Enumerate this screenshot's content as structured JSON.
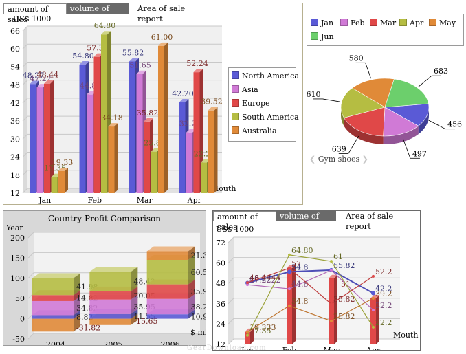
{
  "colors": {
    "north_america": "#5a5ad6",
    "asia": "#d07ad6",
    "europe": "#e04848",
    "south_america": "#b5bd42",
    "australia": "#e08a38",
    "jan": "#5a5ad6",
    "feb": "#d07ad6",
    "mar": "#e04848",
    "apr": "#b5bd42",
    "may": "#e08a38",
    "jun": "#6ccf6c"
  },
  "panel1": {
    "tabs": [
      "amount of sales",
      "volume of sales",
      "Area of sale report"
    ],
    "unit_label": "US$ 1000",
    "x_label": "Mouth",
    "legend": [
      "North America",
      "Asia",
      "Europe",
      "South America",
      "Australia"
    ]
  },
  "panel2": {
    "legend": [
      "Jan",
      "Feb",
      "Mar",
      "Apr",
      "May",
      "Jun"
    ],
    "caption": "Gym shoes"
  },
  "panel3": {
    "title": "Country Profit Comparison",
    "y_label": "Year",
    "unit_label": "$ mil"
  },
  "panel4": {
    "tabs": [
      "amount of sales",
      "volume of sales",
      "Area of sale report"
    ],
    "unit_label": "US$ 1000",
    "x_label": "Mouth"
  },
  "watermark": "GearDownload.com",
  "chart_data": [
    {
      "type": "bar",
      "categories": [
        "Jan",
        "Feb",
        "Mar",
        "Apr"
      ],
      "series": [
        {
          "name": "North America",
          "values": [
            48.27,
            54.8,
            55.82,
            42.2
          ]
        },
        {
          "name": "Asia",
          "values": [
            47.22,
            44.8,
            51.65,
            32.2
          ]
        },
        {
          "name": "Europe",
          "values": [
            48.44,
            57.38,
            35.82,
            52.24
          ]
        },
        {
          "name": "South America",
          "values": [
            17.35,
            64.8,
            25.82,
            22.21
          ]
        },
        {
          "name": "Australia",
          "values": [
            19.33,
            34.18,
            61.0,
            39.52
          ]
        }
      ],
      "labels": [
        [
          "48.27",
          "54.80",
          "55.82",
          "42.20"
        ],
        [
          "47.22",
          "44.80",
          "51.65",
          "32.20"
        ],
        [
          "48.44",
          "57.38",
          "35.82",
          "52.24"
        ],
        [
          "17.35",
          "64.80",
          "25.82",
          "22.21"
        ],
        [
          "19.33",
          "34.18",
          "61.00",
          "39.52"
        ]
      ],
      "yticks": [
        12,
        18,
        24,
        30,
        36,
        42,
        48,
        54,
        60,
        66
      ],
      "ylim": [
        12,
        66
      ]
    },
    {
      "type": "pie",
      "categories": [
        "Jan",
        "Feb",
        "Mar",
        "Apr",
        "May",
        "Jun"
      ],
      "values": [
        456,
        497,
        639,
        610,
        580,
        683
      ]
    },
    {
      "type": "bar",
      "title": "Country Profit Comparison",
      "categories": [
        "2004",
        "2005",
        "2006"
      ],
      "stacks": [
        [
          8.82,
          34.82,
          14.82,
          41.98
        ],
        [
          11.55,
          35.95,
          20.05,
          48.42
        ],
        [
          10.91,
          38.22,
          35.92,
          60.52,
          21.37
        ]
      ],
      "negatives": [
        -31.82,
        -15.65,
        0
      ],
      "negative_labels": [
        "-31.82",
        "-15.65",
        ""
      ],
      "stack_labels": [
        [
          "8.82",
          "34.82",
          "14.82",
          "41.98"
        ],
        [
          "11.55",
          "35.95",
          "20.05",
          "48.42"
        ],
        [
          "10.91",
          "38.22",
          "35.92",
          "60.52",
          "21.37"
        ]
      ],
      "yticks": [
        -50,
        0,
        50,
        100,
        150,
        200
      ],
      "ylim": [
        -50,
        200
      ]
    },
    {
      "type": "line",
      "categories": [
        "Jan",
        "Feb",
        "Mar",
        "Apr"
      ],
      "series": [
        {
          "name": "North America",
          "values": [
            48.27,
            54.8,
            55.82,
            42.2
          ]
        },
        {
          "name": "Asia",
          "values": [
            47.2222,
            44.8,
            55.82,
            32.2
          ]
        },
        {
          "name": "Europe",
          "values": [
            48.4444,
            57,
            35.82,
            52.2
          ]
        },
        {
          "name": "South America",
          "values": [
            17.35,
            64.8,
            61,
            22.2
          ]
        },
        {
          "name": "Australia",
          "values": [
            19.333,
            34.8,
            25.82,
            39.2
          ]
        }
      ],
      "bars": [
        19.333,
        57,
        51,
        39.2
      ],
      "labels": [
        [
          "48.27",
          "54.8",
          "55.82",
          "42.2"
        ],
        [
          "47.2222",
          "44.8",
          "",
          "32.2"
        ],
        [
          "48.4444",
          "57",
          "35.82",
          "52.2"
        ],
        [
          "17.35",
          "64.80",
          "61",
          "22.2"
        ],
        [
          "19.333",
          "34.8",
          "25.82",
          "39.2"
        ]
      ],
      "bar_labels": [
        "",
        "",
        "51",
        ""
      ],
      "yticks": [
        12,
        24,
        36,
        48,
        60,
        72
      ],
      "ylim": [
        12,
        72
      ]
    }
  ]
}
